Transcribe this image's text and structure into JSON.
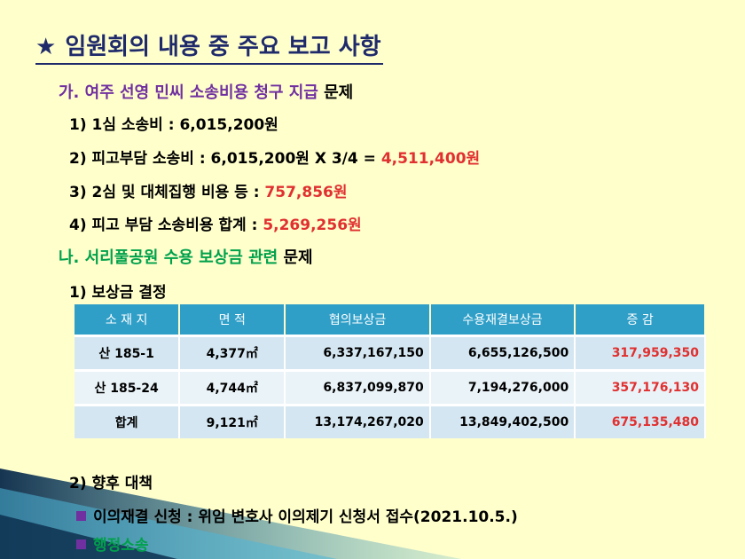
{
  "title": {
    "star": "★",
    "text": "임원회의 내용 중 주요 보고 사항"
  },
  "section_ga": {
    "head": "가. 여주 선영 민씨 소송비용 청구 지급",
    "tail": "문제"
  },
  "items_ga": [
    {
      "label": "1) 1심 소송비 : 6,015,200원",
      "value": ""
    },
    {
      "label": "2) 피고부담 소송비 : 6,015,200원 X 3/4 = ",
      "value": "4,511,400원"
    },
    {
      "label": "3) 2심 및 대체집행 비용 등 : ",
      "value": "757,856원"
    },
    {
      "label": "4) 피고 부담 소송비용 합계 : ",
      "value": "5,269,256원"
    }
  ],
  "section_na": {
    "head": "나. 서리풀공원 수용 보상금 관련",
    "tail": "문제"
  },
  "item_na1": "1) 보상금 결정",
  "table": {
    "headers": [
      "소 재 지",
      "면    적",
      "협의보상금",
      "수용재결보상금",
      "증 감"
    ],
    "rows": [
      [
        "산 185-1",
        "4,377㎡",
        "6,337,167,150",
        "6,655,126,500",
        "317,959,350"
      ],
      [
        "산 185-24",
        "4,744㎡",
        "6,837,099,870",
        "7,194,276,000",
        "357,176,130"
      ],
      [
        "합계",
        "9,121㎡",
        "13,174,267,020",
        "13,849,402,500",
        "675,135,480"
      ]
    ]
  },
  "item_na2": "2) 향후 대책",
  "bullets": [
    "이의재결 신청 : 위임 변호사 이의제기 신청서 접수(2021.10.5.)",
    "행정소송"
  ],
  "colors": {
    "background": "#ffffcc",
    "title": "#1f2a6b",
    "accent_red": "#e03030",
    "purple": "#7030a0",
    "green": "#00a14b",
    "table_header": "#2f9fc8"
  }
}
